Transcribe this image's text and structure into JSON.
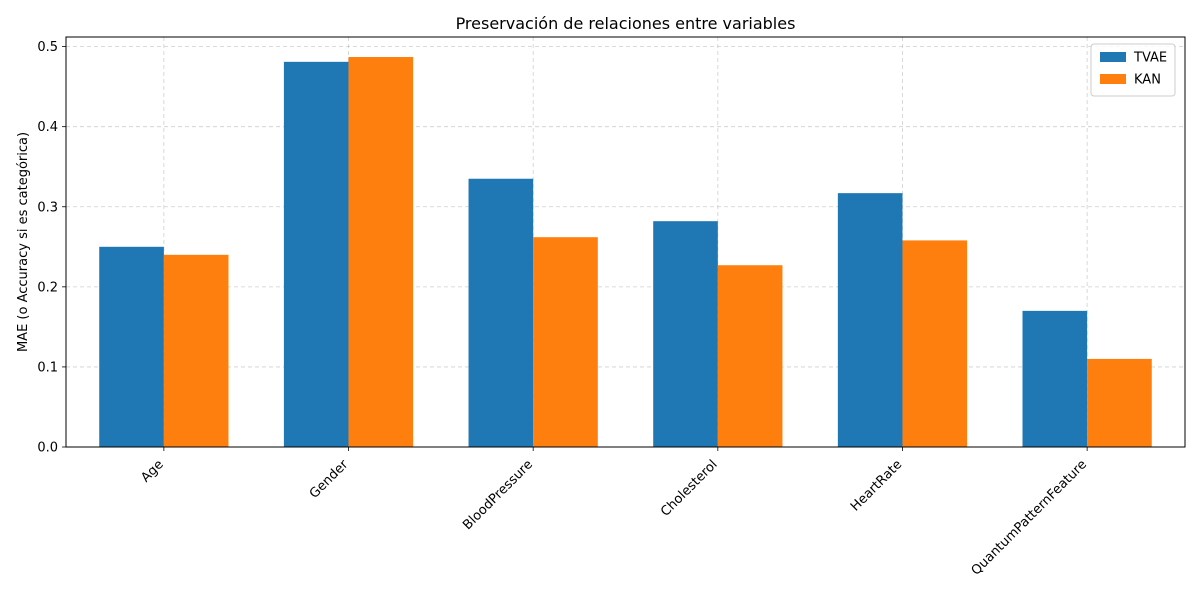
{
  "chart_data": {
    "type": "bar",
    "title": "Preservación de relaciones entre variables",
    "xlabel": "",
    "ylabel": "MAE (o Accuracy si es categórica)",
    "categories": [
      "Age",
      "Gender",
      "BloodPressure",
      "Cholesterol",
      "HeartRate",
      "QuantumPatternFeature"
    ],
    "series": [
      {
        "name": "TVAE",
        "color": "#1f77b4",
        "values": [
          0.25,
          0.481,
          0.335,
          0.282,
          0.317,
          0.17
        ]
      },
      {
        "name": "KAN",
        "color": "#ff7f0e",
        "values": [
          0.24,
          0.487,
          0.262,
          0.227,
          0.258,
          0.11
        ]
      }
    ],
    "ylim": [
      0,
      0.512
    ],
    "yticks": [
      "0.0",
      "0.1",
      "0.2",
      "0.3",
      "0.4",
      "0.5"
    ],
    "ytick_values": [
      0,
      0.1,
      0.2,
      0.3,
      0.4,
      0.5
    ],
    "grid": true,
    "legend_position": "top-right",
    "xtick_rotation": "45 degrees"
  }
}
